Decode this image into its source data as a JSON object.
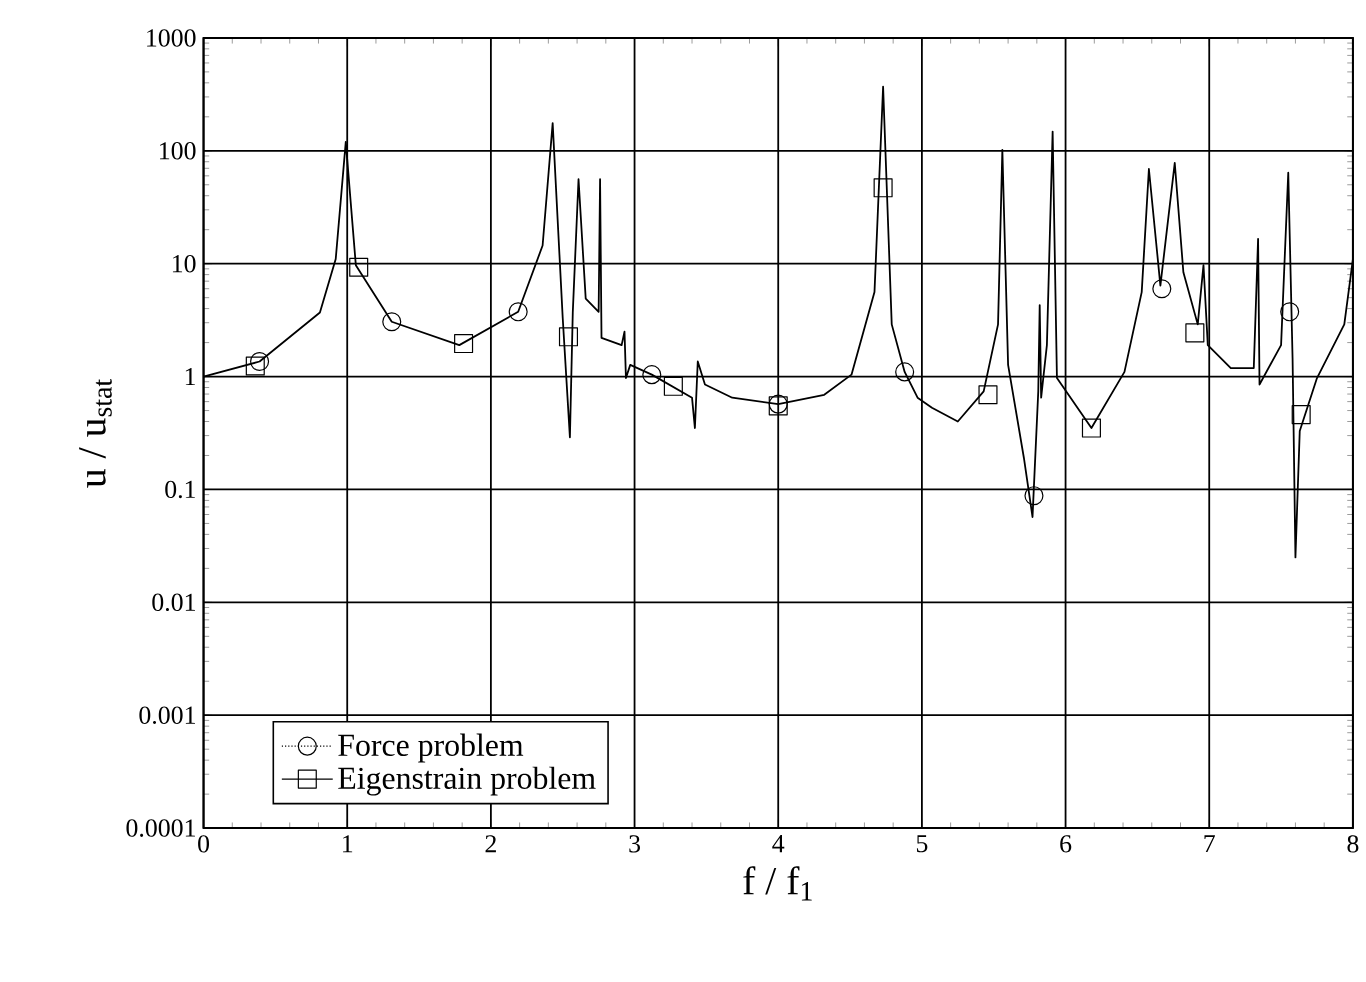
{
  "chart_data": {
    "type": "line",
    "xlabel": "f / f$_{1}$",
    "ylabel": "u / u$_{stat}$",
    "log": "y",
    "xlim": [
      0,
      8
    ],
    "xticks": [
      0,
      1,
      2,
      3,
      4,
      5,
      6,
      7,
      8
    ],
    "ylim": [
      0.0001,
      1000
    ],
    "yticks": [
      {
        "value": 0.0001,
        "label": "0.0001"
      },
      {
        "value": 0.001,
        "label": "0.001"
      },
      {
        "value": 0.01,
        "label": "0.01"
      },
      {
        "value": 0.1,
        "label": "0.1"
      },
      {
        "value": 1,
        "label": "1"
      },
      {
        "value": 10,
        "label": "10"
      },
      {
        "value": 100,
        "label": "100"
      },
      {
        "value": 1000,
        "label": "1000"
      }
    ],
    "grid": true,
    "legend": "bottom left",
    "series": [
      {
        "color": "#000000",
        "line_style": "solid",
        "marker": "none",
        "x": [
          0,
          0.39,
          0.81,
          0.92,
          0.99,
          1.06,
          1.31,
          1.78,
          2.19,
          2.36,
          2.43,
          2.5,
          2.55,
          2.57,
          2.61,
          2.66,
          2.75,
          2.76,
          2.77,
          2.91,
          2.93,
          2.94,
          2.97,
          3.12,
          3.4,
          3.42,
          3.44,
          3.49,
          3.68,
          4.0,
          4.32,
          4.51,
          4.67,
          4.73,
          4.79,
          4.88,
          4.97,
          5.07,
          5.25,
          5.43,
          5.53,
          5.56,
          5.6,
          5.71,
          5.77,
          5.81,
          5.82,
          5.83,
          5.87,
          5.91,
          5.94,
          6.18,
          6.41,
          6.53,
          6.58,
          6.66,
          6.76,
          6.82,
          6.92,
          6.96,
          6.99,
          7.15,
          7.31,
          7.34,
          7.35,
          7.5,
          7.55,
          7.58,
          7.6,
          7.63,
          7.75,
          7.94,
          8.0
        ],
        "values": [
          1.0,
          1.36,
          3.7,
          11,
          120,
          9.7,
          3.06,
          1.9,
          3.75,
          14.5,
          176,
          3.3,
          0.29,
          3.7,
          56,
          4.9,
          3.75,
          56,
          2.2,
          1.9,
          2.5,
          0.97,
          1.27,
          1.04,
          0.65,
          0.35,
          1.36,
          0.85,
          0.65,
          0.57,
          0.69,
          1.04,
          5.6,
          370,
          2.9,
          1.1,
          0.65,
          0.53,
          0.4,
          0.74,
          2.9,
          102,
          1.27,
          0.19,
          0.057,
          0.74,
          4.3,
          0.65,
          1.9,
          148,
          0.97,
          0.35,
          1.1,
          5.6,
          69,
          6.4,
          78,
          8.4,
          2.9,
          9.7,
          1.9,
          1.19,
          1.19,
          16.6,
          0.85,
          1.9,
          64,
          1.46,
          0.025,
          0.33,
          0.97,
          2.9,
          11
        ]
      },
      {
        "name": "Force problem",
        "type": "scatter",
        "color": "#000000",
        "line_style": "dotted",
        "marker": "circle",
        "x": [
          0.39,
          1.31,
          2.19,
          3.12,
          4.0,
          4.88,
          5.78,
          6.67,
          7.56
        ],
        "values": [
          1.36,
          3.06,
          3.75,
          1.04,
          0.57,
          1.1,
          0.088,
          6.0,
          3.75
        ]
      },
      {
        "name": "Eigenstrain problem",
        "type": "scatter",
        "color": "#000000",
        "line_style": "solid",
        "marker": "square",
        "x": [
          0.36,
          1.08,
          1.81,
          2.54,
          3.27,
          4.0,
          4.73,
          5.46,
          6.18,
          6.9,
          7.64
        ],
        "values": [
          1.24,
          9.3,
          1.96,
          2.25,
          0.82,
          0.55,
          47,
          0.69,
          0.35,
          2.44,
          0.46
        ]
      }
    ]
  }
}
